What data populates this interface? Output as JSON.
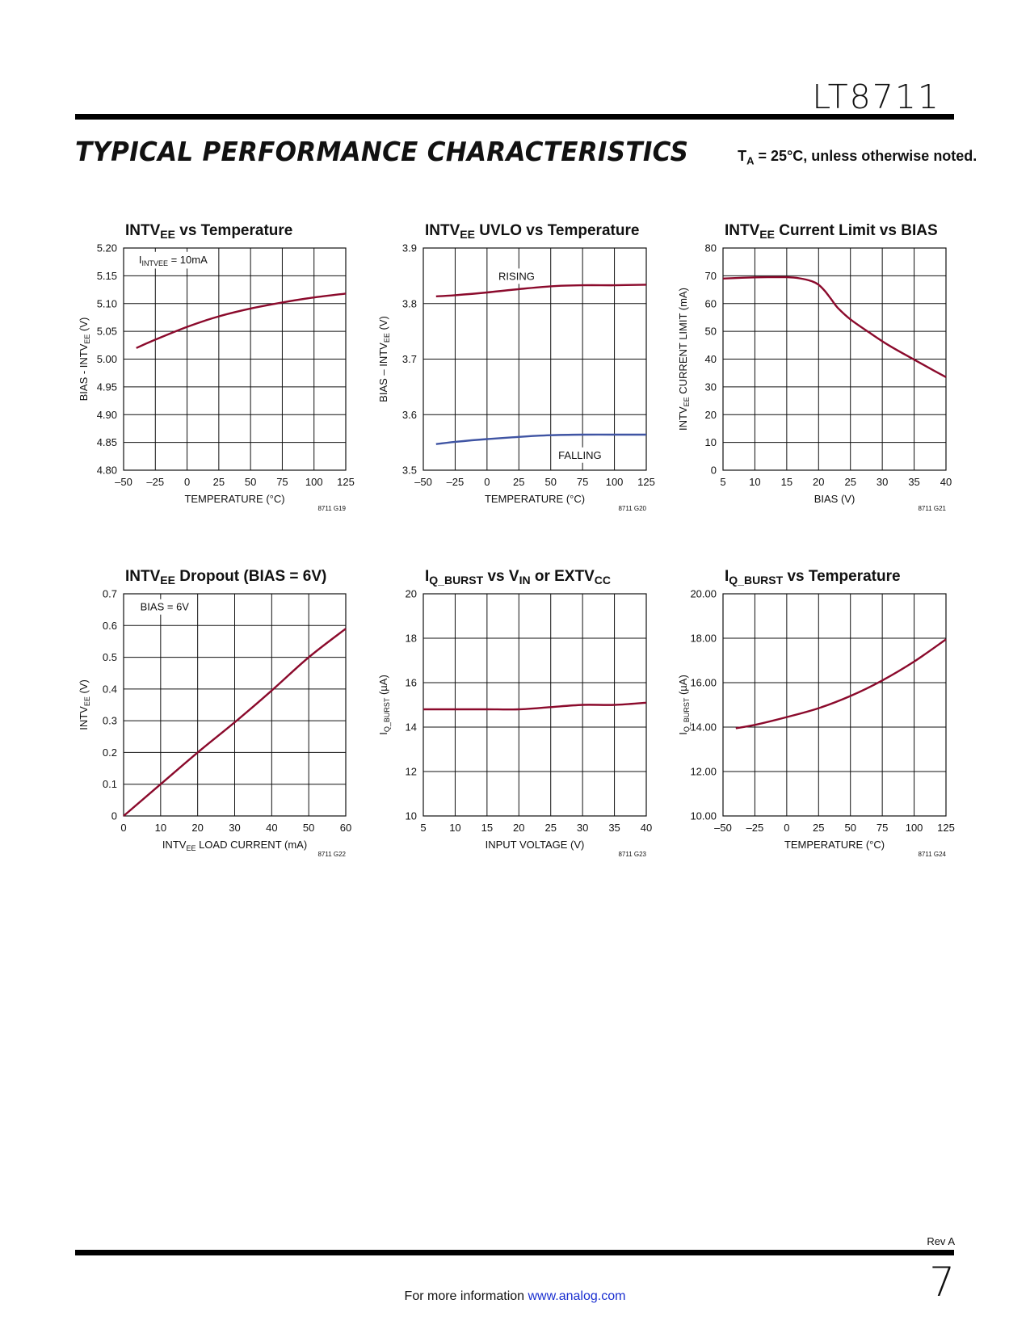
{
  "header": {
    "part_number": "LT8711",
    "section_title": "TYPICAL PERFORMANCE CHARACTERISTICS",
    "section_note_prefix": "T",
    "section_note_sub": "A",
    "section_note_rest": " = 25°C, unless otherwise noted."
  },
  "footer": {
    "rev": "Rev A",
    "info_text": "For more information ",
    "link_text": "www.analog.com",
    "page_number": "7"
  },
  "colors": {
    "red": "#8b0a2c",
    "blue": "#3f54a3",
    "grid": "#111111"
  },
  "chart_data": [
    {
      "type": "line",
      "title_parts": [
        [
          "INTV",
          ""
        ],
        [
          "EE",
          "sub"
        ],
        [
          " vs Temperature",
          ""
        ]
      ],
      "ylabel_parts": [
        [
          "BIAS - INTV",
          ""
        ],
        [
          "EE",
          "sub"
        ],
        [
          " (V)",
          ""
        ]
      ],
      "xlabel_parts": [
        [
          "TEMPERATURE (°C)",
          ""
        ]
      ],
      "xlim": [
        -50,
        125
      ],
      "ylim": [
        4.8,
        5.2
      ],
      "xticks": [
        -50,
        -25,
        0,
        25,
        50,
        75,
        100,
        125
      ],
      "xtick_labels": [
        "–50",
        "–25",
        "0",
        "25",
        "50",
        "75",
        "100",
        "125"
      ],
      "yticks": [
        4.8,
        4.85,
        4.9,
        4.95,
        5.0,
        5.05,
        5.1,
        5.15,
        5.2
      ],
      "ytick_labels": [
        "4.80",
        "4.85",
        "4.90",
        "4.95",
        "5.00",
        "5.05",
        "5.10",
        "5.15",
        "5.20"
      ],
      "code": "8711 G19",
      "annotations": [
        {
          "parts": [
            [
              "I",
              ""
            ],
            [
              "INTVEE",
              "sub"
            ],
            [
              " = 10mA",
              ""
            ]
          ],
          "x": -38,
          "y": 5.18
        }
      ],
      "series": [
        {
          "color": "red",
          "x": [
            -40,
            -25,
            0,
            25,
            50,
            75,
            100,
            125
          ],
          "y": [
            5.02,
            5.035,
            5.058,
            5.077,
            5.091,
            5.102,
            5.111,
            5.118
          ]
        }
      ]
    },
    {
      "type": "line",
      "title_parts": [
        [
          "INTV",
          ""
        ],
        [
          "EE",
          "sub"
        ],
        [
          " UVLO vs Temperature",
          ""
        ]
      ],
      "ylabel_parts": [
        [
          "BIAS – INTV",
          ""
        ],
        [
          "EE",
          "sub"
        ],
        [
          " (V)",
          ""
        ]
      ],
      "xlabel_parts": [
        [
          "TEMPERATURE (°C)",
          ""
        ]
      ],
      "xlim": [
        -50,
        125
      ],
      "ylim": [
        3.5,
        3.9
      ],
      "xticks": [
        -50,
        -25,
        0,
        25,
        50,
        75,
        100,
        125
      ],
      "xtick_labels": [
        "–50",
        "–25",
        "0",
        "25",
        "50",
        "75",
        "100",
        "125"
      ],
      "yticks": [
        3.5,
        3.6,
        3.7,
        3.8,
        3.9
      ],
      "ytick_labels": [
        "3.5",
        "3.6",
        "3.7",
        "3.8",
        "3.9"
      ],
      "code": "8711 G20",
      "annotations": [
        {
          "parts": [
            [
              "RISING",
              ""
            ]
          ],
          "x": 9,
          "y": 3.85
        },
        {
          "parts": [
            [
              "FALLING",
              ""
            ]
          ],
          "x": 56,
          "y": 3.528
        }
      ],
      "series": [
        {
          "name": "RISING",
          "color": "red",
          "x": [
            -40,
            -25,
            0,
            25,
            50,
            75,
            100,
            125
          ],
          "y": [
            3.813,
            3.815,
            3.82,
            3.826,
            3.831,
            3.833,
            3.833,
            3.834
          ]
        },
        {
          "name": "FALLING",
          "color": "blue",
          "x": [
            -40,
            -25,
            0,
            25,
            50,
            75,
            100,
            125
          ],
          "y": [
            3.547,
            3.551,
            3.556,
            3.56,
            3.563,
            3.564,
            3.564,
            3.564
          ]
        }
      ]
    },
    {
      "type": "line",
      "title_parts": [
        [
          "INTV",
          ""
        ],
        [
          "EE",
          "sub"
        ],
        [
          " Current Limit vs BIAS",
          ""
        ]
      ],
      "ylabel_parts": [
        [
          "INTV",
          ""
        ],
        [
          "EE",
          "sub"
        ],
        [
          " CURRENT LIMIT (mA)",
          ""
        ]
      ],
      "xlabel_parts": [
        [
          "BIAS (V)",
          ""
        ]
      ],
      "xlim": [
        5,
        40
      ],
      "ylim": [
        0,
        80
      ],
      "xticks": [
        5,
        10,
        15,
        20,
        25,
        30,
        35,
        40
      ],
      "xtick_labels": [
        "5",
        "10",
        "15",
        "20",
        "25",
        "30",
        "35",
        "40"
      ],
      "yticks": [
        0,
        10,
        20,
        30,
        40,
        50,
        60,
        70,
        80
      ],
      "ytick_labels": [
        "0",
        "10",
        "20",
        "30",
        "40",
        "50",
        "60",
        "70",
        "80"
      ],
      "code": "8711 G21",
      "annotations": [],
      "series": [
        {
          "color": "red",
          "x": [
            5,
            8,
            12,
            15,
            17,
            19,
            20,
            21,
            22,
            23,
            25,
            28,
            31,
            35,
            38,
            40
          ],
          "y": [
            69,
            69.3,
            69.5,
            69.5,
            69.1,
            68,
            66.8,
            64.5,
            61.5,
            58.5,
            54.3,
            49.5,
            45,
            39.8,
            36,
            33.5
          ]
        }
      ]
    },
    {
      "type": "line",
      "title_parts": [
        [
          "INTV",
          ""
        ],
        [
          "EE",
          "sub"
        ],
        [
          " Dropout (BIAS = 6V)",
          ""
        ]
      ],
      "ylabel_parts": [
        [
          "INTV",
          ""
        ],
        [
          "EE",
          "sub"
        ],
        [
          " (V)",
          ""
        ]
      ],
      "xlabel_parts": [
        [
          "INTV",
          ""
        ],
        [
          "EE",
          "sub"
        ],
        [
          " LOAD CURRENT (mA)",
          ""
        ]
      ],
      "xlim": [
        0,
        60
      ],
      "ylim": [
        0,
        0.7
      ],
      "xticks": [
        0,
        10,
        20,
        30,
        40,
        50,
        60
      ],
      "xtick_labels": [
        "0",
        "10",
        "20",
        "30",
        "40",
        "50",
        "60"
      ],
      "yticks": [
        0,
        0.1,
        0.2,
        0.3,
        0.4,
        0.5,
        0.6,
        0.7
      ],
      "ytick_labels": [
        "0",
        "0.1",
        "0.2",
        "0.3",
        "0.4",
        "0.5",
        "0.6",
        "0.7"
      ],
      "code": "8711 G22",
      "annotations": [
        {
          "parts": [
            [
              "BIAS = 6V",
              ""
            ]
          ],
          "x": 4.5,
          "y": 0.66
        }
      ],
      "series": [
        {
          "color": "red",
          "x": [
            0,
            10,
            20,
            30,
            40,
            50,
            60
          ],
          "y": [
            0,
            0.1,
            0.2,
            0.295,
            0.395,
            0.5,
            0.59
          ]
        }
      ]
    },
    {
      "type": "line",
      "title_parts": [
        [
          "I",
          ""
        ],
        [
          "Q_BURST",
          "sub"
        ],
        [
          " vs V",
          ""
        ],
        [
          "IN",
          "sub"
        ],
        [
          " or EXTV",
          ""
        ],
        [
          "CC",
          "sub"
        ]
      ],
      "ylabel_parts": [
        [
          "I",
          ""
        ],
        [
          "Q_BURST",
          "sub"
        ],
        [
          " (µA)",
          ""
        ]
      ],
      "xlabel_parts": [
        [
          "INPUT VOLTAGE (V)",
          ""
        ]
      ],
      "xlim": [
        5,
        40
      ],
      "ylim": [
        10,
        20
      ],
      "xticks": [
        5,
        10,
        15,
        20,
        25,
        30,
        35,
        40
      ],
      "xtick_labels": [
        "5",
        "10",
        "15",
        "20",
        "25",
        "30",
        "35",
        "40"
      ],
      "yticks": [
        10,
        12,
        14,
        16,
        18,
        20
      ],
      "ytick_labels": [
        "10",
        "12",
        "14",
        "16",
        "18",
        "20"
      ],
      "code": "8711 G23",
      "annotations": [],
      "series": [
        {
          "color": "red",
          "x": [
            5,
            10,
            15,
            20,
            25,
            30,
            35,
            40
          ],
          "y": [
            14.8,
            14.8,
            14.8,
            14.8,
            14.9,
            15.0,
            15.0,
            15.1
          ]
        }
      ]
    },
    {
      "type": "line",
      "title_parts": [
        [
          "I",
          ""
        ],
        [
          "Q_BURST",
          "sub"
        ],
        [
          " vs Temperature",
          ""
        ]
      ],
      "ylabel_parts": [
        [
          "I",
          ""
        ],
        [
          "Q_BURST",
          "sub"
        ],
        [
          " (µA)",
          ""
        ]
      ],
      "xlabel_parts": [
        [
          "TEMPERATURE (°C)",
          ""
        ]
      ],
      "xlim": [
        -50,
        125
      ],
      "ylim": [
        10,
        20
      ],
      "xticks": [
        -50,
        -25,
        0,
        25,
        50,
        75,
        100,
        125
      ],
      "xtick_labels": [
        "–50",
        "–25",
        "0",
        "25",
        "50",
        "75",
        "100",
        "125"
      ],
      "yticks": [
        10,
        12,
        14,
        16,
        18,
        20
      ],
      "ytick_labels": [
        "10.00",
        "12.00",
        "14.00",
        "16.00",
        "18.00",
        "20.00"
      ],
      "code": "8711 G24",
      "annotations": [],
      "series": [
        {
          "color": "red",
          "x": [
            -40,
            -25,
            0,
            25,
            50,
            75,
            100,
            125
          ],
          "y": [
            13.95,
            14.1,
            14.45,
            14.85,
            15.4,
            16.1,
            16.95,
            17.95
          ]
        }
      ]
    }
  ]
}
